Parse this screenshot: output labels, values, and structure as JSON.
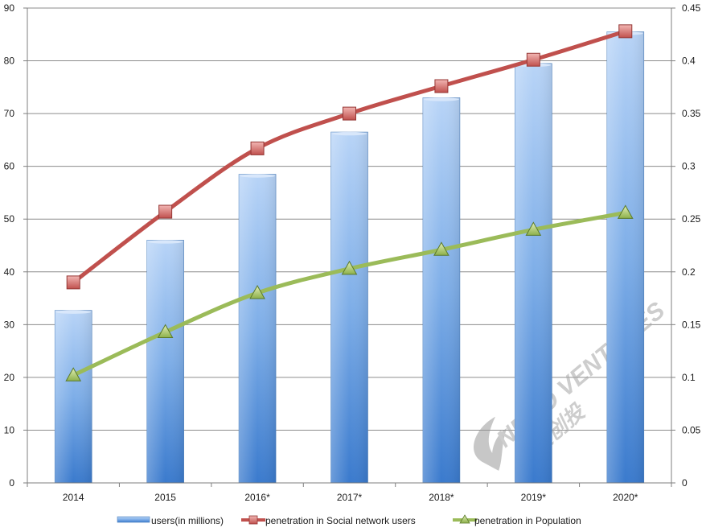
{
  "chart_data": {
    "type": "bar",
    "categories": [
      "2014",
      "2015",
      "2016*",
      "2017*",
      "2018*",
      "2019*",
      "2020*"
    ],
    "y_left": {
      "min": 0,
      "max": 90,
      "step": 10,
      "ticks": [
        "0",
        "10",
        "20",
        "30",
        "40",
        "50",
        "60",
        "70",
        "80",
        "90"
      ]
    },
    "y_right": {
      "min": 0,
      "max": 0.45,
      "step": 0.05,
      "ticks": [
        "0",
        "0.05",
        "0.1",
        "0.15",
        "0.2",
        "0.25",
        "0.3",
        "0.35",
        "0.4",
        "0.45"
      ]
    },
    "grid": "horizontal",
    "legend_position": "bottom",
    "series": [
      {
        "name": "users(in millions)",
        "type": "bar",
        "axis": "left",
        "color": "#5b9bd5",
        "values": [
          32.7,
          46.0,
          58.5,
          66.5,
          73.0,
          79.5,
          85.5
        ]
      },
      {
        "name": "penetration in Social network users",
        "type": "line",
        "axis": "right",
        "color": "#c0504d",
        "marker": "square",
        "values": [
          0.19,
          0.257,
          0.317,
          0.35,
          0.376,
          0.401,
          0.428
        ]
      },
      {
        "name": "penetration in Population",
        "type": "line",
        "axis": "right",
        "color": "#9bbb59",
        "marker": "triangle",
        "values": [
          0.102,
          0.143,
          0.18,
          0.203,
          0.221,
          0.24,
          0.256
        ]
      }
    ]
  },
  "watermark": {
    "brand": "NEMO VENTURES",
    "chinese": "尼莫创投"
  }
}
